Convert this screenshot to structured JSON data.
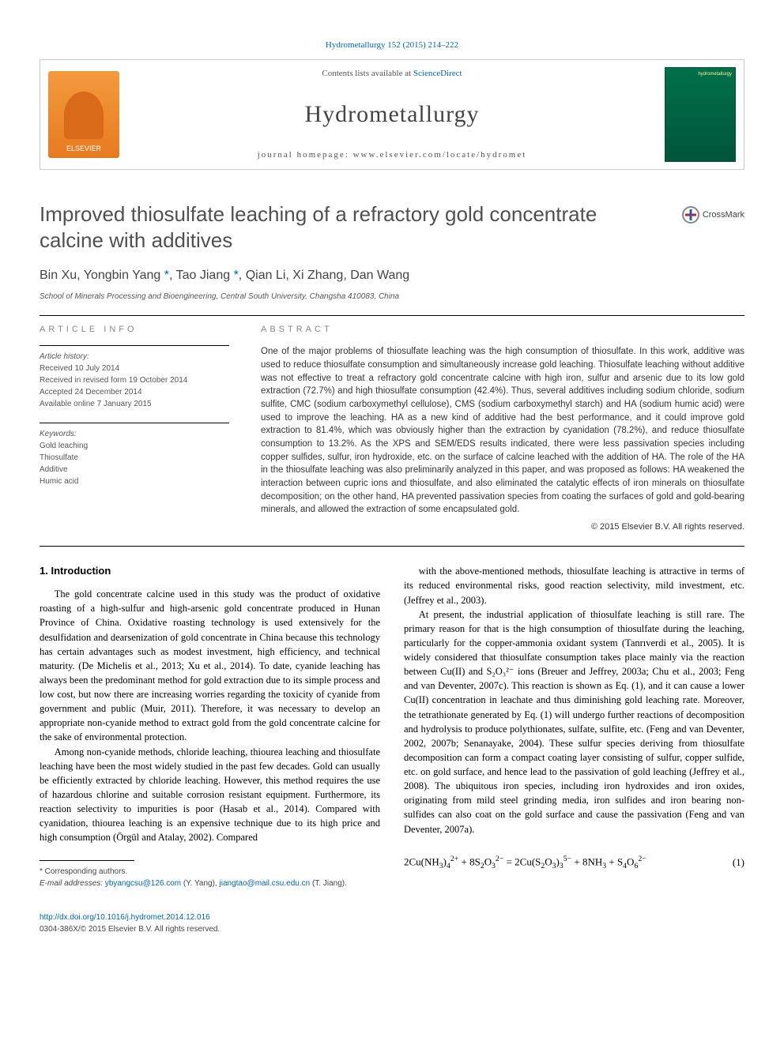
{
  "header": {
    "citation_link": "Hydrometallurgy 152 (2015) 214–222",
    "contents_prefix": "Contents lists available at ",
    "contents_link": "ScienceDirect",
    "journal_title": "Hydrometallurgy",
    "homepage_label": "journal homepage: www.elsevier.com/locate/hydromet",
    "publisher_logo_text": "ELSEVIER",
    "cover_label": "hydrometallurgy"
  },
  "crossmark": {
    "label": "CrossMark"
  },
  "paper": {
    "title": "Improved thiosulfate leaching of a refractory gold concentrate calcine with additives",
    "authors_html": "Bin Xu, Yongbin Yang <span class=\"star\">*</span>, Tao Jiang <span class=\"star\">*</span>, Qian Li, Xi Zhang, Dan Wang",
    "affiliation": "School of Minerals Processing and Bioengineering, Central South University, Changsha 410083, China"
  },
  "article_info": {
    "label": "ARTICLE INFO",
    "history_heading": "Article history:",
    "received": "Received 10 July 2014",
    "revised": "Received in revised form 19 October 2014",
    "accepted": "Accepted 24 December 2014",
    "online": "Available online 7 January 2015",
    "keywords_heading": "Keywords:",
    "keywords": [
      "Gold leaching",
      "Thiosulfate",
      "Additive",
      "Humic acid"
    ]
  },
  "abstract": {
    "label": "ABSTRACT",
    "text": "One of the major problems of thiosulfate leaching was the high consumption of thiosulfate. In this work, additive was used to reduce thiosulfate consumption and simultaneously increase gold leaching. Thiosulfate leaching without additive was not effective to treat a refractory gold concentrate calcine with high iron, sulfur and arsenic due to its low gold extraction (72.7%) and high thiosulfate consumption (42.4%). Thus, several additives including sodium chloride, sodium sulfite, CMC (sodium carboxymethyl cellulose), CMS (sodium carboxymethyl starch) and HA (sodium humic acid) were used to improve the leaching. HA as a new kind of additive had the best performance, and it could improve gold extraction to 81.4%, which was obviously higher than the extraction by cyanidation (78.2%), and reduce thiosulfate consumption to 13.2%. As the XPS and SEM/EDS results indicated, there were less passivation species including copper sulfides, sulfur, iron hydroxide, etc. on the surface of calcine leached with the addition of HA. The role of the HA in the thiosulfate leaching was also preliminarily analyzed in this paper, and was proposed as follows: HA weakened the interaction between cupric ions and thiosulfate, and also eliminated the catalytic effects of iron minerals on thiosulfate decomposition; on the other hand, HA prevented passivation species from coating the surfaces of gold and gold-bearing minerals, and allowed the extraction of some encapsulated gold.",
    "copyright": "© 2015 Elsevier B.V. All rights reserved."
  },
  "body": {
    "section_heading": "1. Introduction",
    "col1_p1": "The gold concentrate calcine used in this study was the product of oxidative roasting of a high-sulfur and high-arsenic gold concentrate produced in Hunan Province of China. Oxidative roasting technology is used extensively for the desulfidation and dearsenization of gold concentrate in China because this technology has certain advantages such as modest investment, high efficiency, and technical maturity. (De Michelis et al., 2013; Xu et al., 2014). To date, cyanide leaching has always been the predominant method for gold extraction due to its simple process and low cost, but now there are increasing worries regarding the toxicity of cyanide from government and public (Muir, 2011). Therefore, it was necessary to develop an appropriate non-cyanide method to extract gold from the gold concentrate calcine for the sake of environmental protection.",
    "col1_p2": "Among non-cyanide methods, chloride leaching, thiourea leaching and thiosulfate leaching have been the most widely studied in the past few decades. Gold can usually be efficiently extracted by chloride leaching. However, this method requires the use of hazardous chlorine and suitable corrosion resistant equipment. Furthermore, its reaction selectivity to impurities is poor (Hasab et al., 2014). Compared with cyanidation, thiourea leaching is an expensive technique due to its high price and high consumption (Örgül and Atalay, 2002). Compared",
    "col2_p1": "with the above-mentioned methods, thiosulfate leaching is attractive in terms of its reduced environmental risks, good reaction selectivity, mild investment, etc. (Jeffrey et al., 2003).",
    "col2_p2": "At present, the industrial application of thiosulfate leaching is still rare. The primary reason for that is the high consumption of thiosulfate during the leaching, particularly for the copper-ammonia oxidant system (Tanrıverdi et al., 2005). It is widely considered that thiosulfate consumption takes place mainly via the reaction between Cu(II) and S₂O₃²⁻ ions (Breuer and Jeffrey, 2003a; Chu et al., 2003; Feng and van Deventer, 2007c). This reaction is shown as Eq. (1), and it can cause a lower Cu(II) concentration in leachate and thus diminishing gold leaching rate. Moreover, the tetrathionate generated by Eq. (1) will undergo further reactions of decomposition and hydrolysis to produce polythionates, sulfate, sulfite, etc. (Feng and van Deventer, 2002, 2007b; Senanayake, 2004). These sulfur species deriving from thiosulfate decomposition can form a compact coating layer consisting of sulfur, copper sulfide, etc. on gold surface, and hence lead to the passivation of gold leaching (Jeffrey et al., 2008). The ubiquitous iron species, including iron hydroxides and iron oxides, originating from mild steel grinding media, iron sulfides and iron bearing non-sulfides can also coat on the gold surface and cause the passivation (Feng and van Deventer, 2007a)."
  },
  "equation": {
    "body_html": "2Cu(NH<sub>3</sub>)<sub>4</sub><sup>2+</sup> + 8S<sub>2</sub>O<sub>3</sub><sup>2−</sup> = 2Cu(S<sub>2</sub>O<sub>3</sub>)<sub>3</sub><sup>5−</sup> + 8NH<sub>3</sub> + S<sub>4</sub>O<sub>6</sub><sup>2−</sup>",
    "number": "(1)"
  },
  "footnote": {
    "corr": "* Corresponding authors.",
    "emails_html": "<i>E-mail addresses:</i> <span class=\"ref-link\">ybyangcsu@126.com</span> (Y. Yang), <span class=\"ref-link\">jiangtao@mail.csu.edu.cn</span> (T. Jiang)."
  },
  "doi": {
    "link": "http://dx.doi.org/10.1016/j.hydromet.2014.12.016",
    "issn_line": "0304-386X/© 2015 Elsevier B.V. All rights reserved."
  },
  "colors": {
    "link": "#0066aa",
    "text": "#000000",
    "muted": "#555555",
    "publisher_orange": "#e87a1e",
    "cover_green": "#00704a"
  }
}
